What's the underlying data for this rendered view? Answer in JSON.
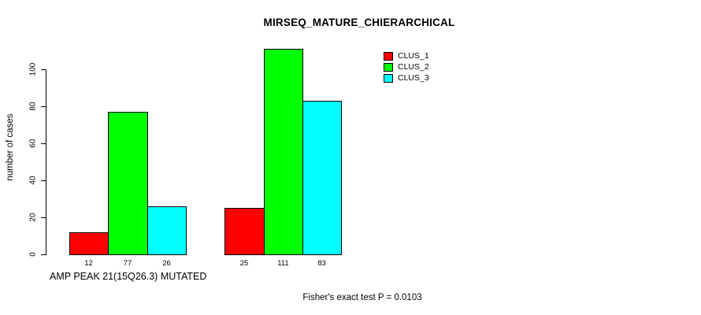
{
  "title": "MIRSEQ_MATURE_CHIERARCHICAL",
  "chart_data": {
    "type": "bar",
    "title": "MIRSEQ_MATURE_CHIERARCHICAL",
    "xlabel": "AMP PEAK 21(15Q26.3) MUTATED",
    "ylabel": "number of cases",
    "yticks": [
      0,
      20,
      40,
      60,
      80,
      100
    ],
    "ylim": [
      0,
      111
    ],
    "grid": false,
    "legend_position": "top-right",
    "groups": [
      "AMP PEAK 21(15Q26.3) MUTATED",
      ""
    ],
    "series": [
      {
        "name": "CLUS_1",
        "color": "#ff0000",
        "values": [
          12,
          25
        ]
      },
      {
        "name": "CLUS_2",
        "color": "#00ff00",
        "values": [
          77,
          111
        ]
      },
      {
        "name": "CLUS_3",
        "color": "#00ffff",
        "values": [
          26,
          83
        ]
      }
    ],
    "bar_labels": [
      [
        "12",
        "77",
        "26"
      ],
      [
        "25",
        "111",
        "83"
      ]
    ],
    "annotation": "Fisher's exact test P = 0.0103"
  },
  "legend": {
    "items": [
      {
        "label": "CLUS_1",
        "color": "#ff0000"
      },
      {
        "label": "CLUS_2",
        "color": "#00ff00"
      },
      {
        "label": "CLUS_3",
        "color": "#00ffff"
      }
    ]
  },
  "colors": {
    "background": "#ffffff",
    "axis": "#000000",
    "text": "#000000"
  }
}
